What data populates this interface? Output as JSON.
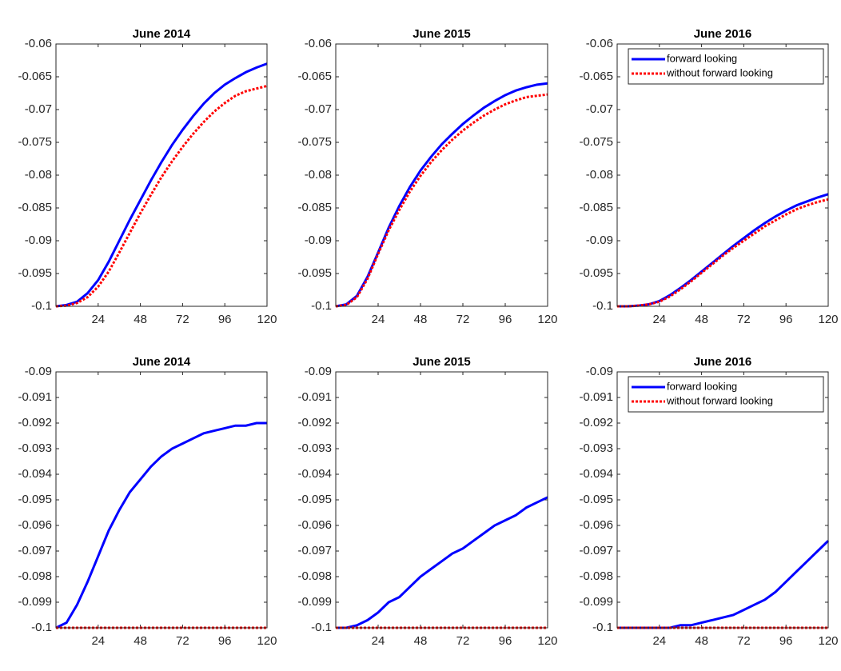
{
  "chart_data": [
    {
      "type": "line",
      "title": "June 2014",
      "x": [
        0,
        6,
        12,
        18,
        24,
        30,
        36,
        42,
        48,
        54,
        60,
        66,
        72,
        78,
        84,
        90,
        96,
        102,
        108,
        114,
        120
      ],
      "series": [
        {
          "color": "#0000ff",
          "style": "solid",
          "values": [
            -0.1,
            -0.0998,
            -0.0993,
            -0.098,
            -0.096,
            -0.0932,
            -0.09,
            -0.0868,
            -0.0838,
            -0.0808,
            -0.078,
            -0.0754,
            -0.0731,
            -0.071,
            -0.0691,
            -0.0675,
            -0.0662,
            -0.0652,
            -0.0643,
            -0.0636,
            -0.063
          ]
        },
        {
          "color": "#ff0000",
          "style": "dotted",
          "values": [
            -0.1,
            -0.0999,
            -0.0995,
            -0.0986,
            -0.097,
            -0.0947,
            -0.0918,
            -0.0888,
            -0.0858,
            -0.083,
            -0.0803,
            -0.0779,
            -0.0757,
            -0.0737,
            -0.0719,
            -0.0703,
            -0.069,
            -0.0679,
            -0.0672,
            -0.0668,
            -0.0664
          ]
        }
      ],
      "xlim": [
        0,
        120
      ],
      "xticks": [
        24,
        48,
        72,
        96,
        120
      ],
      "ylim": [
        -0.1,
        -0.06
      ],
      "yticks": [
        -0.1,
        -0.095,
        -0.09,
        -0.085,
        -0.08,
        -0.075,
        -0.07,
        -0.065,
        -0.06
      ]
    },
    {
      "type": "line",
      "title": "June 2015",
      "x": [
        0,
        6,
        12,
        18,
        24,
        30,
        36,
        42,
        48,
        54,
        60,
        66,
        72,
        78,
        84,
        90,
        96,
        102,
        108,
        114,
        120
      ],
      "series": [
        {
          "color": "#0000ff",
          "style": "solid",
          "values": [
            -0.1,
            -0.0997,
            -0.0984,
            -0.0955,
            -0.0918,
            -0.088,
            -0.0847,
            -0.0818,
            -0.0793,
            -0.0772,
            -0.0753,
            -0.0737,
            -0.0722,
            -0.0709,
            -0.0697,
            -0.0687,
            -0.0678,
            -0.0671,
            -0.0666,
            -0.0662,
            -0.066
          ]
        },
        {
          "color": "#ff0000",
          "style": "dotted",
          "values": [
            -0.1,
            -0.0998,
            -0.0986,
            -0.0958,
            -0.092,
            -0.0884,
            -0.0853,
            -0.0825,
            -0.0801,
            -0.078,
            -0.0762,
            -0.0746,
            -0.0732,
            -0.072,
            -0.0709,
            -0.07,
            -0.0692,
            -0.0686,
            -0.0681,
            -0.0679,
            -0.0677
          ]
        }
      ],
      "xlim": [
        0,
        120
      ],
      "xticks": [
        24,
        48,
        72,
        96,
        120
      ],
      "ylim": [
        -0.1,
        -0.06
      ],
      "yticks": [
        -0.1,
        -0.095,
        -0.09,
        -0.085,
        -0.08,
        -0.075,
        -0.07,
        -0.065,
        -0.06
      ]
    },
    {
      "type": "line",
      "title": "June 2016",
      "x": [
        0,
        6,
        12,
        18,
        24,
        30,
        36,
        42,
        48,
        54,
        60,
        66,
        72,
        78,
        84,
        90,
        96,
        102,
        108,
        114,
        120
      ],
      "series": [
        {
          "name": "forward looking",
          "color": "#0000ff",
          "style": "solid",
          "values": [
            -0.1,
            -0.1,
            -0.0999,
            -0.0997,
            -0.0992,
            -0.0983,
            -0.0972,
            -0.096,
            -0.0947,
            -0.0934,
            -0.0921,
            -0.0908,
            -0.0896,
            -0.0884,
            -0.0873,
            -0.0863,
            -0.0854,
            -0.0846,
            -0.084,
            -0.0834,
            -0.0829
          ]
        },
        {
          "name": "without forward looking",
          "color": "#ff0000",
          "style": "dotted",
          "values": [
            -0.1,
            -0.1,
            -0.0999,
            -0.0997,
            -0.0993,
            -0.0985,
            -0.0974,
            -0.0962,
            -0.0949,
            -0.0936,
            -0.0923,
            -0.0911,
            -0.09,
            -0.0889,
            -0.0878,
            -0.0869,
            -0.086,
            -0.0852,
            -0.0846,
            -0.0841,
            -0.0837
          ]
        }
      ],
      "xlim": [
        0,
        120
      ],
      "xticks": [
        24,
        48,
        72,
        96,
        120
      ],
      "ylim": [
        -0.1,
        -0.06
      ],
      "yticks": [
        -0.1,
        -0.095,
        -0.09,
        -0.085,
        -0.08,
        -0.075,
        -0.07,
        -0.065,
        -0.06
      ],
      "legend": "northeast"
    },
    {
      "type": "line",
      "title": "June 2014",
      "x": [
        0,
        6,
        12,
        18,
        24,
        30,
        36,
        42,
        48,
        54,
        60,
        66,
        72,
        78,
        84,
        90,
        96,
        102,
        108,
        114,
        120
      ],
      "series": [
        {
          "color": "#0000ff",
          "style": "solid",
          "values": [
            -0.1,
            -0.0998,
            -0.0991,
            -0.0982,
            -0.0972,
            -0.0962,
            -0.0954,
            -0.0947,
            -0.0942,
            -0.0937,
            -0.0933,
            -0.093,
            -0.0928,
            -0.0926,
            -0.0924,
            -0.0923,
            -0.0922,
            -0.0921,
            -0.0921,
            -0.092,
            -0.092
          ]
        },
        {
          "color": "#ff0000",
          "style": "dotted",
          "values": [
            -0.1,
            -0.1,
            -0.1,
            -0.1,
            -0.1,
            -0.1,
            -0.1,
            -0.1,
            -0.1,
            -0.1,
            -0.1,
            -0.1,
            -0.1,
            -0.1,
            -0.1,
            -0.1,
            -0.1,
            -0.1,
            -0.1,
            -0.1,
            -0.1
          ]
        }
      ],
      "xlim": [
        0,
        120
      ],
      "xticks": [
        24,
        48,
        72,
        96,
        120
      ],
      "ylim": [
        -0.1,
        -0.09
      ],
      "yticks": [
        -0.1,
        -0.099,
        -0.098,
        -0.097,
        -0.096,
        -0.095,
        -0.094,
        -0.093,
        -0.092,
        -0.091,
        -0.09
      ]
    },
    {
      "type": "line",
      "title": "June 2015",
      "x": [
        0,
        6,
        12,
        18,
        24,
        30,
        36,
        42,
        48,
        54,
        60,
        66,
        72,
        78,
        84,
        90,
        96,
        102,
        108,
        114,
        120
      ],
      "series": [
        {
          "color": "#0000ff",
          "style": "solid",
          "values": [
            -0.1,
            -0.1,
            -0.0999,
            -0.0997,
            -0.0994,
            -0.099,
            -0.0988,
            -0.0984,
            -0.098,
            -0.0977,
            -0.0974,
            -0.0971,
            -0.0969,
            -0.0966,
            -0.0963,
            -0.096,
            -0.0958,
            -0.0956,
            -0.0953,
            -0.0951,
            -0.0949
          ]
        },
        {
          "color": "#ff0000",
          "style": "dotted",
          "values": [
            -0.1,
            -0.1,
            -0.1,
            -0.1,
            -0.1,
            -0.1,
            -0.1,
            -0.1,
            -0.1,
            -0.1,
            -0.1,
            -0.1,
            -0.1,
            -0.1,
            -0.1,
            -0.1,
            -0.1,
            -0.1,
            -0.1,
            -0.1,
            -0.1
          ]
        }
      ],
      "xlim": [
        0,
        120
      ],
      "xticks": [
        24,
        48,
        72,
        96,
        120
      ],
      "ylim": [
        -0.1,
        -0.09
      ],
      "yticks": [
        -0.1,
        -0.099,
        -0.098,
        -0.097,
        -0.096,
        -0.095,
        -0.094,
        -0.093,
        -0.092,
        -0.091,
        -0.09
      ]
    },
    {
      "type": "line",
      "title": "June 2016",
      "x": [
        0,
        6,
        12,
        18,
        24,
        30,
        36,
        42,
        48,
        54,
        60,
        66,
        72,
        78,
        84,
        90,
        96,
        102,
        108,
        114,
        120
      ],
      "series": [
        {
          "name": "forward looking",
          "color": "#0000ff",
          "style": "solid",
          "values": [
            -0.1,
            -0.1,
            -0.1,
            -0.1,
            -0.1,
            -0.1,
            -0.0999,
            -0.0999,
            -0.0998,
            -0.0997,
            -0.0996,
            -0.0995,
            -0.0993,
            -0.0991,
            -0.0989,
            -0.0986,
            -0.0982,
            -0.0978,
            -0.0974,
            -0.097,
            -0.0966
          ]
        },
        {
          "name": "without forward looking",
          "color": "#ff0000",
          "style": "dotted",
          "values": [
            -0.1,
            -0.1,
            -0.1,
            -0.1,
            -0.1,
            -0.1,
            -0.1,
            -0.1,
            -0.1,
            -0.1,
            -0.1,
            -0.1,
            -0.1,
            -0.1,
            -0.1,
            -0.1,
            -0.1,
            -0.1,
            -0.1,
            -0.1,
            -0.1
          ]
        }
      ],
      "xlim": [
        0,
        120
      ],
      "xticks": [
        24,
        48,
        72,
        96,
        120
      ],
      "ylim": [
        -0.1,
        -0.09
      ],
      "yticks": [
        -0.1,
        -0.099,
        -0.098,
        -0.097,
        -0.096,
        -0.095,
        -0.094,
        -0.093,
        -0.092,
        -0.091,
        -0.09
      ],
      "legend": "northeast"
    }
  ]
}
